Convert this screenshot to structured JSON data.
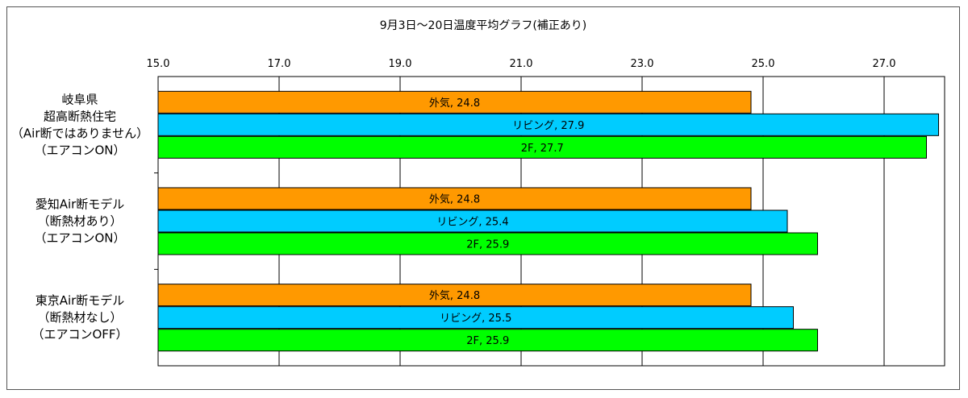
{
  "chart_data": {
    "type": "bar",
    "orientation": "horizontal",
    "title": "9月3日～20日温度平均グラフ(補正あり)",
    "xlim": [
      15.0,
      28.0
    ],
    "x_ticks": [
      "15.0",
      "17.0",
      "19.0",
      "21.0",
      "23.0",
      "25.0",
      "27.0"
    ],
    "x_tick_values": [
      15,
      17,
      19,
      21,
      23,
      25,
      27
    ],
    "grid": "vertical",
    "groups": [
      {
        "label_lines": [
          "岐阜県",
          "超高断熱住宅",
          "（Air断ではありません）",
          "（エアコンON）"
        ],
        "bars": [
          {
            "name": "外気",
            "value": 24.8,
            "label": "外気, 24.8"
          },
          {
            "name": "リビング",
            "value": 27.9,
            "label": "リビング, 27.9"
          },
          {
            "name": "2F",
            "value": 27.7,
            "label": "2F, 27.7"
          }
        ]
      },
      {
        "label_lines": [
          "愛知Air断モデル",
          "（断熱材あり）",
          "（エアコンON）"
        ],
        "bars": [
          {
            "name": "外気",
            "value": 24.8,
            "label": "外気, 24.8"
          },
          {
            "name": "リビング",
            "value": 25.4,
            "label": "リビング, 25.4"
          },
          {
            "name": "2F",
            "value": 25.9,
            "label": "2F, 25.9"
          }
        ]
      },
      {
        "label_lines": [
          "東京Air断モデル",
          "（断熱材なし）",
          "（エアコンOFF）"
        ],
        "bars": [
          {
            "name": "外気",
            "value": 24.8,
            "label": "外気, 24.8"
          },
          {
            "name": "リビング",
            "value": 25.5,
            "label": "リビング, 25.5"
          },
          {
            "name": "2F",
            "value": 25.9,
            "label": "2F, 25.9"
          }
        ]
      }
    ],
    "colors": {
      "外気": "#ff9900",
      "リビング": "#00ccff",
      "2F": "#00ff00"
    }
  }
}
